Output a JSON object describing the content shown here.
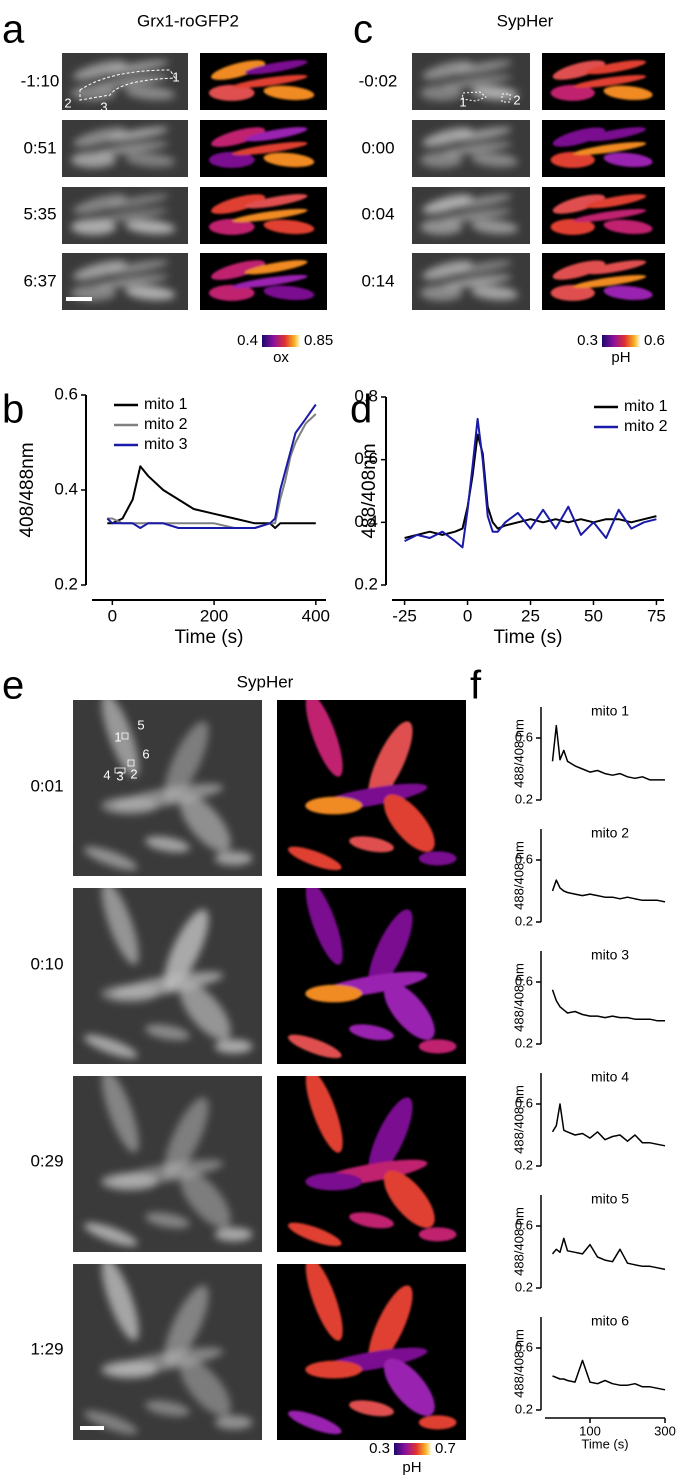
{
  "panels": {
    "a": {
      "label": "a",
      "title": "Grx1-roGFP2",
      "times": [
        "-1:10",
        "0:51",
        "5:35",
        "6:37"
      ],
      "roi_labels": [
        "1",
        "2",
        "3"
      ],
      "colorbar": {
        "min": 0.4,
        "max": 0.85,
        "unit": "ox"
      }
    },
    "c": {
      "label": "c",
      "title": "SypHer",
      "times": [
        "-0:02",
        "0:00",
        "0:04",
        "0:14"
      ],
      "roi_labels": [
        "1",
        "2"
      ],
      "colorbar": {
        "min": 0.3,
        "max": 0.6,
        "unit": "pH"
      }
    },
    "b": {
      "label": "b"
    },
    "d": {
      "label": "d"
    },
    "e": {
      "label": "e",
      "title": "SypHer",
      "times": [
        "0:01",
        "0:10",
        "0:29",
        "1:29"
      ],
      "roi_labels": [
        "1",
        "5",
        "6",
        "4",
        "3",
        "2"
      ],
      "colorbar": {
        "min": 0.3,
        "max": 0.7,
        "unit": "pH"
      }
    },
    "f": {
      "label": "f"
    }
  },
  "chart_data": [
    {
      "type": "line",
      "xlabel": "Time (s)",
      "ylabel": "408/488nm",
      "legend": "upper left",
      "x": [
        -10,
        0,
        20,
        40,
        55,
        70,
        100,
        130,
        160,
        200,
        240,
        280,
        310,
        320,
        330,
        340,
        350,
        360,
        380,
        400
      ],
      "series": [
        {
          "name": "mito 1",
          "color": "#000000",
          "values": [
            0.33,
            0.33,
            0.34,
            0.38,
            0.45,
            0.43,
            0.4,
            0.38,
            0.36,
            0.35,
            0.34,
            0.33,
            0.33,
            0.32,
            0.33,
            0.33,
            0.33,
            0.33,
            0.33,
            0.33
          ]
        },
        {
          "name": "mito 2",
          "color": "#808080",
          "values": [
            0.34,
            0.34,
            0.33,
            0.33,
            0.33,
            0.33,
            0.33,
            0.33,
            0.33,
            0.33,
            0.32,
            0.32,
            0.33,
            0.33,
            0.38,
            0.42,
            0.47,
            0.5,
            0.54,
            0.56
          ]
        },
        {
          "name": "mito 3",
          "color": "#1a1aa8",
          "values": [
            0.34,
            0.33,
            0.33,
            0.33,
            0.32,
            0.33,
            0.33,
            0.32,
            0.32,
            0.32,
            0.32,
            0.32,
            0.33,
            0.34,
            0.4,
            0.44,
            0.48,
            0.52,
            0.55,
            0.58
          ]
        }
      ],
      "xlim": [
        -40,
        420
      ],
      "ylim": [
        0.2,
        0.6
      ],
      "xticks": [
        0,
        200,
        400
      ],
      "yticks": [
        0.2,
        0.4,
        0.6
      ]
    },
    {
      "type": "line",
      "xlabel": "Time (s)",
      "ylabel": "488/408nm",
      "legend": "upper right",
      "x": [
        -25,
        -20,
        -15,
        -10,
        -5,
        -2,
        0,
        2,
        4,
        6,
        8,
        10,
        12,
        15,
        20,
        25,
        30,
        35,
        40,
        45,
        50,
        55,
        60,
        65,
        70,
        75
      ],
      "series": [
        {
          "name": "mito 1",
          "color": "#000000",
          "values": [
            0.35,
            0.36,
            0.37,
            0.36,
            0.37,
            0.38,
            0.45,
            0.55,
            0.68,
            0.62,
            0.45,
            0.4,
            0.38,
            0.39,
            0.4,
            0.41,
            0.4,
            0.41,
            0.4,
            0.41,
            0.4,
            0.41,
            0.41,
            0.4,
            0.41,
            0.42
          ]
        },
        {
          "name": "mito 2",
          "color": "#1a1aa8",
          "values": [
            0.34,
            0.36,
            0.35,
            0.37,
            0.34,
            0.32,
            0.44,
            0.58,
            0.73,
            0.6,
            0.42,
            0.37,
            0.37,
            0.4,
            0.43,
            0.38,
            0.44,
            0.38,
            0.45,
            0.36,
            0.4,
            0.35,
            0.44,
            0.38,
            0.4,
            0.41
          ]
        }
      ],
      "xlim": [
        -30,
        78
      ],
      "ylim": [
        0.2,
        0.8
      ],
      "xticks": [
        -25,
        0,
        25,
        50,
        75
      ],
      "yticks": [
        0.2,
        0.4,
        0.6,
        0.8
      ]
    },
    {
      "type": "line",
      "title": "mito 1",
      "ylabel": "488/408 nm",
      "x": [
        0,
        10,
        20,
        30,
        40,
        60,
        80,
        100,
        120,
        140,
        160,
        180,
        200,
        220,
        240,
        260,
        280,
        300
      ],
      "series": [
        {
          "color": "#000000",
          "values": [
            0.45,
            0.68,
            0.46,
            0.52,
            0.45,
            0.42,
            0.4,
            0.38,
            0.39,
            0.37,
            0.36,
            0.37,
            0.35,
            0.34,
            0.35,
            0.33,
            0.33,
            0.33
          ]
        }
      ],
      "xlim": [
        -20,
        300
      ],
      "ylim": [
        0.2,
        0.8
      ],
      "yticks": [
        0.2,
        0.6
      ]
    },
    {
      "type": "line",
      "title": "mito 2",
      "ylabel": "488/408 nm",
      "x": [
        0,
        10,
        20,
        30,
        40,
        60,
        80,
        100,
        120,
        140,
        160,
        180,
        200,
        220,
        240,
        260,
        280,
        300
      ],
      "series": [
        {
          "color": "#000000",
          "values": [
            0.4,
            0.47,
            0.42,
            0.4,
            0.39,
            0.38,
            0.37,
            0.38,
            0.37,
            0.36,
            0.36,
            0.35,
            0.36,
            0.35,
            0.34,
            0.34,
            0.34,
            0.33
          ]
        }
      ],
      "xlim": [
        -20,
        300
      ],
      "ylim": [
        0.2,
        0.8
      ],
      "yticks": [
        0.2,
        0.6
      ]
    },
    {
      "type": "line",
      "title": "mito 3",
      "ylabel": "488/408 nm",
      "x": [
        0,
        10,
        20,
        30,
        40,
        60,
        80,
        100,
        120,
        140,
        160,
        180,
        200,
        220,
        240,
        260,
        280,
        300
      ],
      "series": [
        {
          "color": "#000000",
          "values": [
            0.55,
            0.48,
            0.44,
            0.42,
            0.4,
            0.41,
            0.39,
            0.38,
            0.38,
            0.37,
            0.38,
            0.37,
            0.37,
            0.36,
            0.36,
            0.36,
            0.35,
            0.35
          ]
        }
      ],
      "xlim": [
        -20,
        300
      ],
      "ylim": [
        0.2,
        0.8
      ],
      "yticks": [
        0.2,
        0.6
      ]
    },
    {
      "type": "line",
      "title": "mito 4",
      "ylabel": "488/408 nm",
      "x": [
        0,
        10,
        20,
        30,
        40,
        60,
        80,
        100,
        120,
        140,
        160,
        180,
        200,
        220,
        240,
        260,
        280,
        300
      ],
      "series": [
        {
          "color": "#000000",
          "values": [
            0.42,
            0.46,
            0.6,
            0.43,
            0.42,
            0.4,
            0.41,
            0.38,
            0.42,
            0.37,
            0.39,
            0.4,
            0.36,
            0.4,
            0.35,
            0.35,
            0.34,
            0.33
          ]
        }
      ],
      "xlim": [
        -20,
        300
      ],
      "ylim": [
        0.2,
        0.8
      ],
      "yticks": [
        0.2,
        0.6
      ]
    },
    {
      "type": "line",
      "title": "mito 5",
      "ylabel": "488/408 nm",
      "x": [
        0,
        10,
        20,
        30,
        40,
        60,
        80,
        100,
        120,
        140,
        160,
        180,
        200,
        220,
        240,
        260,
        280,
        300
      ],
      "series": [
        {
          "color": "#000000",
          "values": [
            0.42,
            0.45,
            0.43,
            0.52,
            0.44,
            0.43,
            0.42,
            0.48,
            0.4,
            0.38,
            0.37,
            0.45,
            0.36,
            0.35,
            0.34,
            0.34,
            0.33,
            0.32
          ]
        }
      ],
      "xlim": [
        -20,
        300
      ],
      "ylim": [
        0.2,
        0.8
      ],
      "yticks": [
        0.2,
        0.6
      ]
    },
    {
      "type": "line",
      "title": "mito 6",
      "ylabel": "488/408 nm",
      "xlabel": "Time (s)",
      "x": [
        0,
        10,
        20,
        30,
        40,
        60,
        80,
        100,
        120,
        140,
        160,
        180,
        200,
        220,
        240,
        260,
        280,
        300
      ],
      "series": [
        {
          "color": "#000000",
          "values": [
            0.42,
            0.41,
            0.4,
            0.4,
            0.39,
            0.38,
            0.52,
            0.38,
            0.37,
            0.39,
            0.37,
            0.36,
            0.36,
            0.37,
            0.35,
            0.35,
            0.34,
            0.33
          ]
        }
      ],
      "xlim": [
        -20,
        300
      ],
      "ylim": [
        0.2,
        0.8
      ],
      "xticks": [
        100,
        300
      ],
      "yticks": [
        0.2,
        0.6
      ]
    }
  ]
}
